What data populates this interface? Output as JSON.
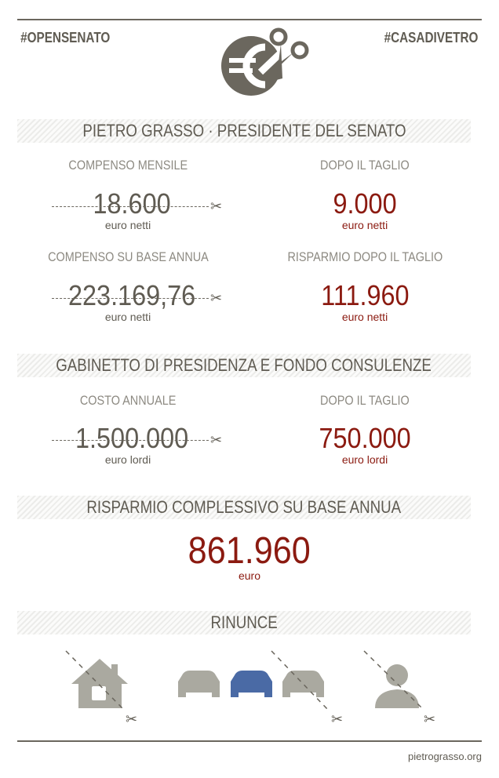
{
  "header": {
    "tag_left": "#OPENSENATO",
    "tag_right": "#CASADIVETRO",
    "logo_icon": "euro-scissors-icon"
  },
  "section1": {
    "title": "PIETRO GRASSO · PRESIDENTE DEL SENATO",
    "monthly_label": "COMPENSO MENSILE",
    "monthly_value": "18.600",
    "monthly_unit": "euro netti",
    "monthly_cut_label": "DOPO IL TAGLIO",
    "monthly_cut_value": "9.000",
    "monthly_cut_unit": "euro netti",
    "annual_label": "COMPENSO SU BASE ANNUA",
    "annual_value": "223.169,76",
    "annual_unit": "euro netti",
    "saving_label": "RISPARMIO DOPO IL TAGLIO",
    "saving_value": "111.960",
    "saving_unit": "euro netti"
  },
  "section2": {
    "title": "GABINETTO DI PRESIDENZA E FONDO CONSULENZE",
    "cost_label": "COSTO ANNUALE",
    "cost_value": "1.500.000",
    "cost_unit": "euro lordi",
    "cut_label": "DOPO IL TAGLIO",
    "cut_value": "750.000",
    "cut_unit": "euro lordi"
  },
  "section3": {
    "title": "RISPARMIO COMPLESSIVO SU BASE ANNUA",
    "value": "861.960",
    "unit": "euro"
  },
  "section4": {
    "title": "RINUNCE",
    "icons": [
      "house-icon",
      "car-icon",
      "car-icon",
      "car-icon",
      "driver-icon"
    ]
  },
  "footer": {
    "site": "pietrograsso.org"
  },
  "colors": {
    "text": "#5f5b52",
    "highlight": "#8b1a10",
    "icon_gray": "#aaa9a0",
    "icon_blue": "#4a6aa5"
  }
}
